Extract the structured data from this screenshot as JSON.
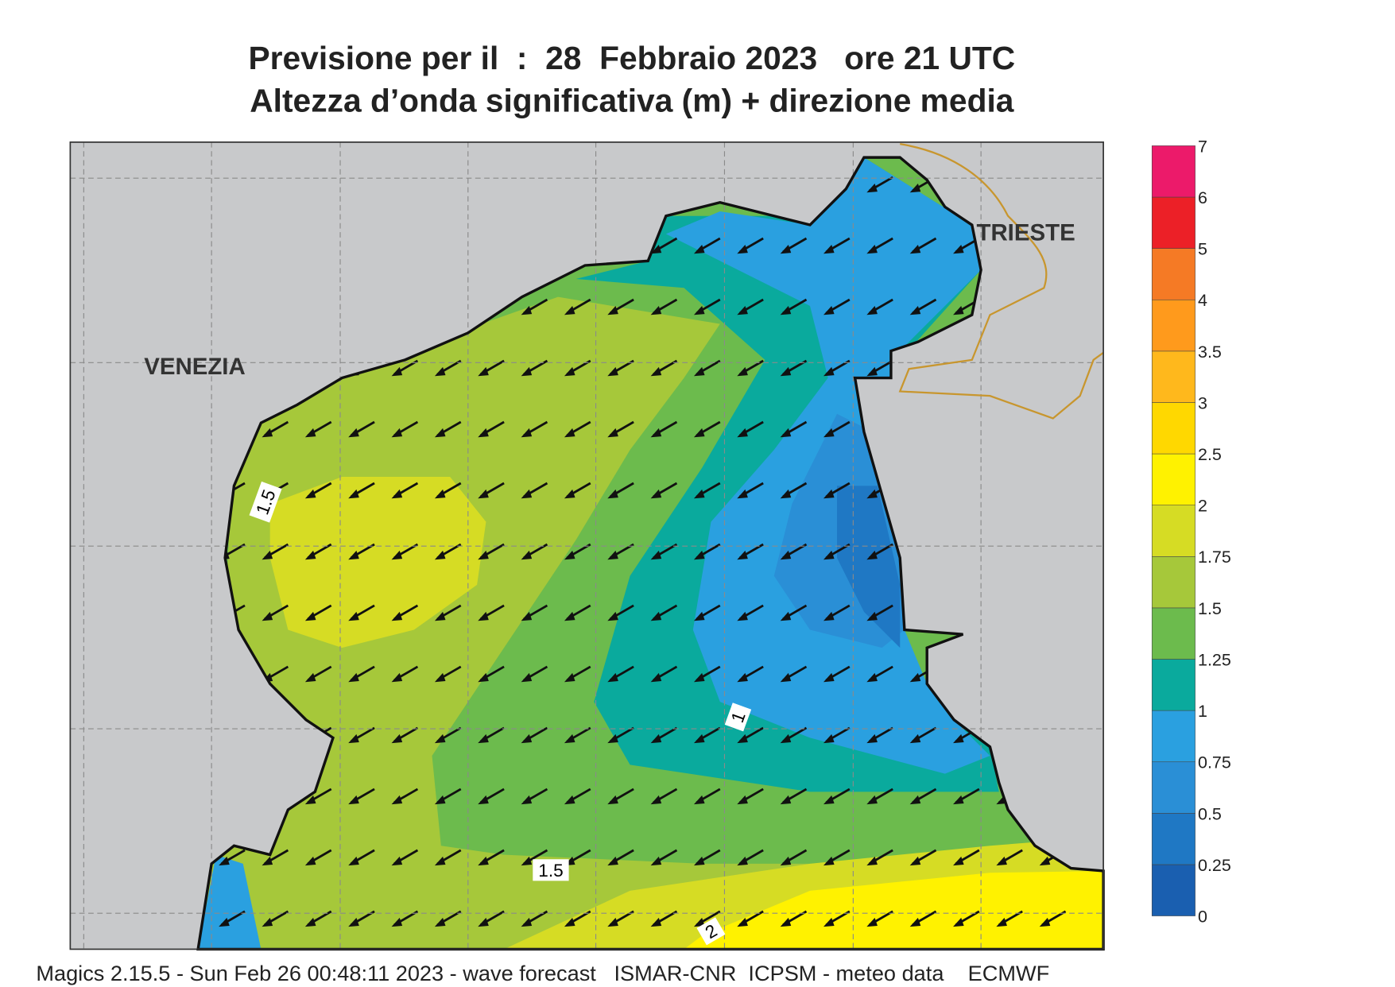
{
  "header": {
    "title": "Previsione per il  :  28  Febbraio 2023   ore 21 UTC",
    "subtitle": "Altezza d’onda significativa (m) + direzione media"
  },
  "map": {
    "places": [
      "VENEZIA",
      "TRIESTE"
    ],
    "contour_labels": [
      "1.5",
      "1",
      "1.5",
      "2"
    ]
  },
  "legend": {
    "levels": [
      "0",
      "0.25",
      "0.5",
      "0.75",
      "1",
      "1.25",
      "1.5",
      "1.75",
      "2",
      "2.5",
      "3",
      "3.5",
      "4",
      "5",
      "6",
      "7"
    ],
    "colors": [
      "#1a5fb0",
      "#1f78c4",
      "#2a8fd6",
      "#2aa0e0",
      "#0aaa9d",
      "#6cbb4d",
      "#a6c83a",
      "#d6dc24",
      "#fff200",
      "#ffd800",
      "#ffb81c",
      "#ff9a1c",
      "#f57a25",
      "#ec2027",
      "#ec1a6a"
    ]
  },
  "footer": "Magics 2.15.5 - Sun Feb 26 00:48:11 2023 - wave forecast   ISMAR-CNR  ICPSM - meteo data    ECMWF"
}
